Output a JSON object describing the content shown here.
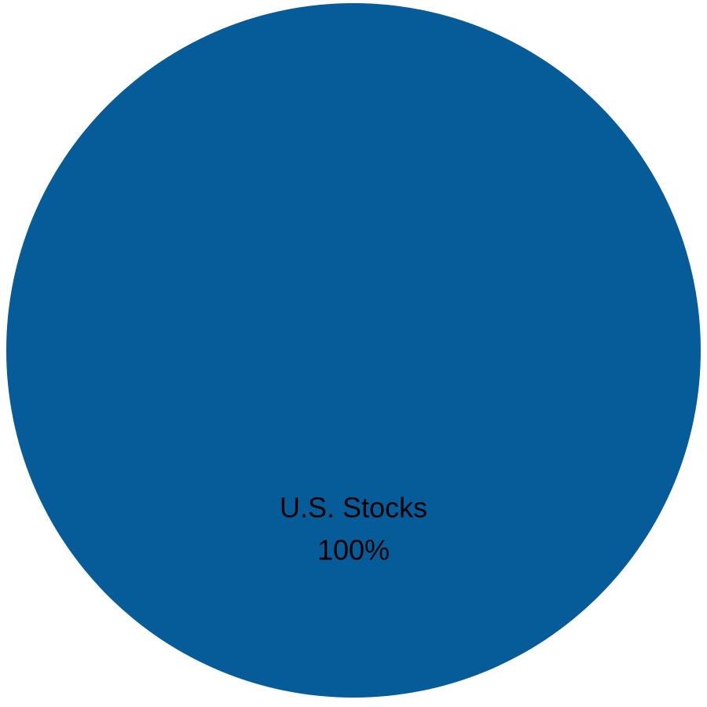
{
  "chart_data": {
    "type": "pie",
    "slices": [
      {
        "label": "U.S. Stocks",
        "value": 100,
        "value_label": "100%",
        "color": "#065c99"
      }
    ]
  }
}
